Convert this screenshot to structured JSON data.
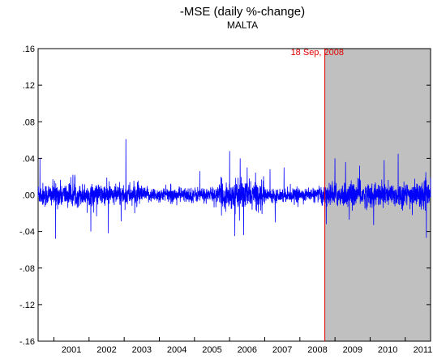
{
  "chart_data": {
    "type": "line",
    "title": "-MSE (daily %-change)",
    "subtitle": "MALTA",
    "x_start_year": 2000.55,
    "x_end_year": 2011.72,
    "x_tick_labels": [
      "2001",
      "2002",
      "2003",
      "2004",
      "2005",
      "2006",
      "2007",
      "2008",
      "2009",
      "2010",
      "2011"
    ],
    "ylim": [
      -0.16,
      0.16
    ],
    "y_ticks": [
      0.16,
      0.12,
      0.08,
      0.04,
      0.0,
      -0.04,
      -0.08,
      -0.12,
      -0.16
    ],
    "y_tick_labels": [
      ".16",
      ".12",
      ".08",
      ".04",
      ".00",
      "-.04",
      "-.08",
      "-.12",
      "-.16"
    ],
    "event": {
      "label": "18 Sep, 2008",
      "date_year": 2008.71,
      "shaded_until_year": 2011.72
    },
    "series": [
      {
        "color": "#0000ff",
        "approx_daily_obs": 2800,
        "notable_spikes": [
          {
            "year": 2000.6,
            "value": 0.04
          },
          {
            "year": 2001.05,
            "value": -0.048
          },
          {
            "year": 2001.6,
            "value": 0.02
          },
          {
            "year": 2002.05,
            "value": -0.04
          },
          {
            "year": 2002.55,
            "value": -0.042
          },
          {
            "year": 2003.05,
            "value": 0.061
          },
          {
            "year": 2003.3,
            "value": -0.02
          },
          {
            "year": 2005.15,
            "value": 0.026
          },
          {
            "year": 2006.0,
            "value": 0.048
          },
          {
            "year": 2006.15,
            "value": -0.045
          },
          {
            "year": 2006.3,
            "value": 0.04
          },
          {
            "year": 2006.4,
            "value": -0.044
          },
          {
            "year": 2006.5,
            "value": 0.03
          },
          {
            "year": 2007.15,
            "value": 0.028
          },
          {
            "year": 2007.3,
            "value": -0.03
          },
          {
            "year": 2007.55,
            "value": 0.03
          },
          {
            "year": 2008.75,
            "value": -0.032
          },
          {
            "year": 2009.0,
            "value": 0.04
          },
          {
            "year": 2009.3,
            "value": 0.036
          },
          {
            "year": 2009.7,
            "value": 0.032
          },
          {
            "year": 2010.1,
            "value": -0.033
          },
          {
            "year": 2010.4,
            "value": 0.038
          },
          {
            "year": 2010.8,
            "value": 0.045
          },
          {
            "year": 2011.2,
            "value": -0.022
          },
          {
            "year": 2011.6,
            "value": -0.047
          }
        ]
      }
    ]
  }
}
